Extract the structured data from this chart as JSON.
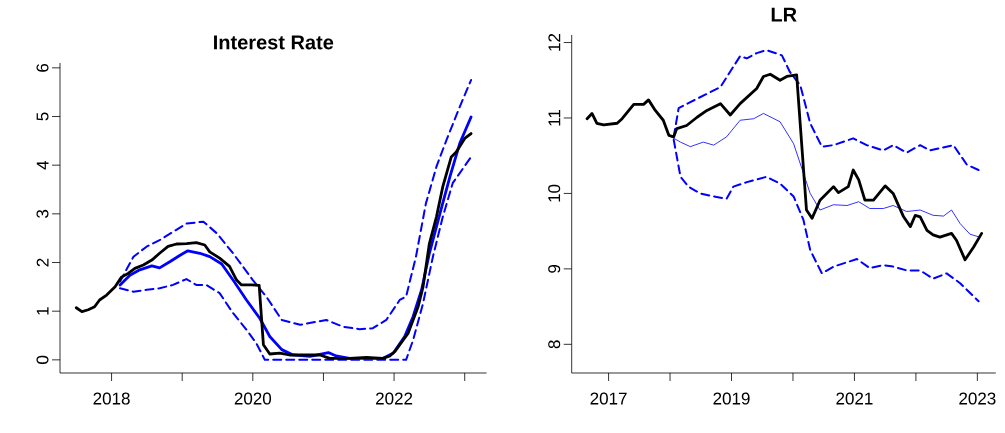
{
  "chart_data": [
    {
      "type": "line",
      "title": "Interest Rate",
      "xlim": [
        2017.27,
        2023.31
      ],
      "ylim": [
        -0.27,
        6.1
      ],
      "xticks": [
        2018,
        {
          "value": 2019,
          "label": null
        },
        2020,
        {
          "value": 2021,
          "label": null
        },
        2022,
        {
          "value": 2023,
          "label": null
        }
      ],
      "yticks": [
        0,
        1,
        2,
        3,
        4,
        5,
        6
      ],
      "series": [
        {
          "color": "#0000ff",
          "line_style": "dashed",
          "x": [
            2018.12,
            2018.31,
            2018.5,
            2018.68,
            2018.87,
            2019.06,
            2019.3,
            2019.49,
            2019.72,
            2020.0,
            2020.19,
            2020.41,
            2020.67,
            2021.04,
            2021.28,
            2021.51,
            2021.7,
            2021.89,
            2022.08,
            2022.17,
            2022.31,
            2022.45,
            2022.6,
            2022.74,
            2022.93,
            2023.09
          ],
          "values": [
            1.61,
            2.12,
            2.33,
            2.46,
            2.63,
            2.8,
            2.84,
            2.6,
            2.19,
            1.64,
            1.3,
            0.82,
            0.72,
            0.82,
            0.68,
            0.63,
            0.65,
            0.82,
            1.23,
            1.3,
            2.12,
            3.21,
            3.97,
            4.51,
            5.2,
            5.75
          ]
        },
        {
          "color": "#0000ff",
          "line_style": "dashed",
          "x": [
            2018.12,
            2018.31,
            2018.5,
            2018.68,
            2018.87,
            2019.06,
            2019.2,
            2019.34,
            2019.53,
            2019.72,
            2019.91,
            2020.05,
            2020.17,
            2020.43,
            2022.17,
            2022.27,
            2022.41,
            2022.55,
            2022.69,
            2022.83,
            2023.09
          ],
          "values": [
            1.47,
            1.4,
            1.44,
            1.47,
            1.54,
            1.66,
            1.54,
            1.54,
            1.37,
            0.96,
            0.62,
            0.34,
            0,
            0,
            0,
            0.41,
            1.16,
            2.12,
            2.94,
            3.63,
            4.17
          ]
        },
        {
          "color": "#0000ff",
          "line_style": "solid",
          "x": [
            2018.12,
            2018.26,
            2018.4,
            2018.57,
            2018.68,
            2018.83,
            2018.97,
            2019.08,
            2019.25,
            2019.39,
            2019.56,
            2019.72,
            2019.91,
            2020.1,
            2020.24,
            2020.41,
            2020.57,
            2020.81,
            2021.07,
            2021.18,
            2021.37,
            2021.84,
            2021.99,
            2022.15,
            2022.27,
            2022.39,
            2022.5,
            2022.65,
            2022.79,
            2022.93,
            2023.09
          ],
          "values": [
            1.54,
            1.74,
            1.85,
            1.93,
            1.89,
            2.02,
            2.15,
            2.24,
            2.19,
            2.12,
            1.97,
            1.64,
            1.23,
            0.85,
            0.48,
            0.21,
            0.1,
            0.07,
            0.15,
            0.08,
            0.03,
            0.03,
            0.14,
            0.48,
            0.89,
            1.44,
            2.19,
            3.01,
            3.76,
            4.45,
            4.99
          ]
        },
        {
          "color": "#000000",
          "line_style": "solid",
          "x": [
            2017.5,
            2017.58,
            2017.67,
            2017.76,
            2017.83,
            2017.93,
            2018.05,
            2018.14,
            2018.24,
            2018.33,
            2018.45,
            2018.57,
            2018.68,
            2018.8,
            2018.92,
            2019.06,
            2019.2,
            2019.32,
            2019.39,
            2019.53,
            2019.67,
            2019.77,
            2019.84,
            2019.98,
            2020.09,
            2020.15,
            2020.24,
            2020.38,
            2020.52,
            2020.67,
            2020.95,
            2021.09,
            2021.37,
            2021.61,
            2021.84,
            2021.94,
            2022.01,
            2022.13,
            2022.2,
            2022.34,
            2022.41,
            2022.5,
            2022.6,
            2022.69,
            2022.81,
            2022.88,
            2023.0,
            2023.09
          ],
          "values": [
            1.07,
            0.99,
            1.03,
            1.09,
            1.23,
            1.33,
            1.5,
            1.7,
            1.78,
            1.88,
            1.95,
            2.05,
            2.19,
            2.33,
            2.38,
            2.39,
            2.41,
            2.36,
            2.22,
            2.09,
            1.92,
            1.64,
            1.54,
            1.54,
            1.53,
            0.31,
            0.12,
            0.14,
            0.1,
            0.1,
            0.1,
            0.03,
            0.03,
            0.05,
            0.03,
            0.08,
            0.17,
            0.41,
            0.55,
            1.09,
            1.5,
            2.39,
            2.94,
            3.56,
            4.17,
            4.27,
            4.55,
            4.65
          ]
        }
      ]
    },
    {
      "type": "line",
      "title": "LR",
      "xlim": [
        2016.4,
        2023.3
      ],
      "ylim": [
        7.62,
        12.1
      ],
      "xticks": [
        2017,
        {
          "value": 2018,
          "label": null
        },
        2019,
        {
          "value": 2020,
          "label": null
        },
        2021,
        {
          "value": 2022,
          "label": null
        },
        2023
      ],
      "yticks": [
        8,
        9,
        10,
        11,
        12
      ],
      "series": [
        {
          "color": "#0000ff",
          "line_style": "dashed",
          "x": [
            2018.06,
            2018.14,
            2018.33,
            2018.6,
            2018.82,
            2019.03,
            2019.14,
            2019.25,
            2019.41,
            2019.57,
            2019.82,
            2019.95,
            2020.12,
            2020.28,
            2020.47,
            2020.66,
            2020.98,
            2021.2,
            2021.47,
            2021.63,
            2021.85,
            2022.07,
            2022.23,
            2022.61,
            2022.83,
            2023.02
          ],
          "values": [
            10.75,
            11.13,
            11.21,
            11.32,
            11.41,
            11.68,
            11.82,
            11.79,
            11.86,
            11.9,
            11.83,
            11.61,
            11.43,
            10.93,
            10.62,
            10.64,
            10.73,
            10.64,
            10.57,
            10.64,
            10.54,
            10.64,
            10.57,
            10.64,
            10.38,
            10.31
          ]
        },
        {
          "color": "#0000ff",
          "line_style": "dashed",
          "x": [
            2018.06,
            2018.17,
            2018.3,
            2018.49,
            2018.71,
            2018.92,
            2019.03,
            2019.25,
            2019.57,
            2019.79,
            2020.01,
            2020.17,
            2020.28,
            2020.47,
            2020.66,
            2021.04,
            2021.25,
            2021.47,
            2021.63,
            2021.85,
            2022.07,
            2022.28,
            2022.5,
            2022.72,
            2023.02
          ],
          "values": [
            10.71,
            10.22,
            10.09,
            10.0,
            9.96,
            9.93,
            10.09,
            10.15,
            10.22,
            10.13,
            9.96,
            9.65,
            9.25,
            8.94,
            9.03,
            9.13,
            9.01,
            9.05,
            9.03,
            8.98,
            8.98,
            8.87,
            8.94,
            8.81,
            8.57
          ]
        },
        {
          "color": "#0000ff",
          "line_style": "solid",
          "x": [
            2018.0,
            2018.17,
            2018.33,
            2018.54,
            2018.71,
            2018.92,
            2019.14,
            2019.36,
            2019.52,
            2019.79,
            2020.01,
            2020.17,
            2020.28,
            2020.44,
            2020.66,
            2020.88,
            2021.07,
            2021.25,
            2021.47,
            2021.63,
            2021.85,
            2022.07,
            2022.28,
            2022.45,
            2022.58,
            2022.72,
            2022.88,
            2023.04
          ],
          "values": [
            10.76,
            10.68,
            10.62,
            10.68,
            10.64,
            10.75,
            10.97,
            10.99,
            11.06,
            10.95,
            10.66,
            null,
            10.0,
            9.78,
            9.85,
            9.84,
            9.89,
            9.8,
            9.8,
            9.84,
            9.76,
            9.78,
            9.71,
            9.7,
            9.78,
            9.6,
            9.46,
            9.42
          ]
        },
        {
          "color": "#000000",
          "line_style": "solid",
          "x": [
            2016.65,
            2016.73,
            2016.81,
            2016.92,
            2017.14,
            2017.22,
            2017.33,
            2017.41,
            2017.57,
            2017.65,
            2017.76,
            2017.89,
            2017.98,
            2018.06,
            2018.11,
            2018.27,
            2018.44,
            2018.6,
            2018.82,
            2018.98,
            2019.14,
            2019.41,
            2019.52,
            2019.63,
            2019.79,
            2019.9,
            2020.06,
            2020.22,
            2020.31,
            2020.44,
            2020.66,
            2020.74,
            2020.9,
            2020.98,
            2021.07,
            2021.17,
            2021.31,
            2021.5,
            2021.63,
            2021.8,
            2021.91,
            2021.99,
            2022.07,
            2022.18,
            2022.28,
            2022.39,
            2022.58,
            2022.66,
            2022.8,
            2022.94,
            2023.07
          ],
          "values": [
            10.99,
            11.06,
            10.93,
            10.91,
            10.93,
            10.99,
            11.1,
            11.18,
            11.18,
            11.24,
            11.1,
            10.97,
            10.77,
            10.75,
            10.86,
            10.9,
            11.01,
            11.1,
            11.19,
            11.04,
            11.19,
            11.39,
            11.55,
            11.58,
            11.5,
            11.55,
            11.57,
            9.78,
            9.67,
            9.91,
            10.09,
            10.01,
            10.09,
            10.31,
            10.18,
            9.91,
            9.91,
            10.1,
            10.0,
            9.69,
            9.56,
            9.71,
            9.69,
            9.51,
            9.45,
            9.42,
            9.47,
            9.38,
            9.12,
            9.29,
            9.47
          ]
        }
      ]
    }
  ]
}
